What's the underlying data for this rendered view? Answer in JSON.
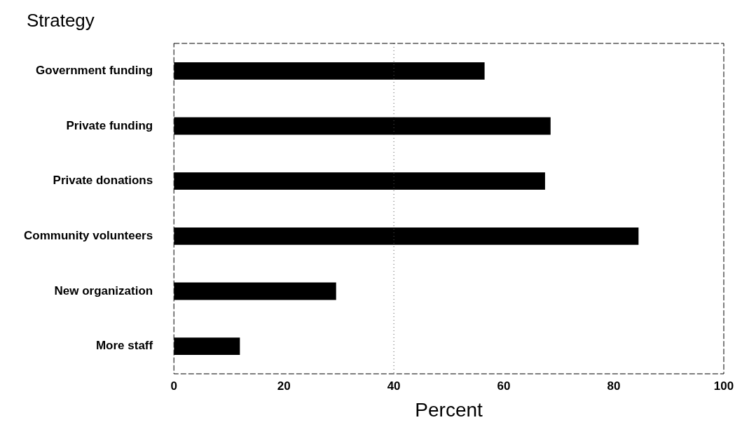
{
  "chart_data": {
    "type": "bar",
    "orientation": "horizontal",
    "title": "Strategy",
    "xlabel": "Percent",
    "categories": [
      "Government funding",
      "Private funding",
      "Private donations",
      "Community volunteers",
      "New organization",
      "More staff"
    ],
    "values": [
      56.5,
      68.5,
      67.5,
      84.5,
      29.5,
      12
    ],
    "color": "#000000",
    "xlim": [
      0,
      100
    ],
    "xticks": [
      0,
      20,
      40,
      60,
      80,
      100
    ],
    "grid": false,
    "legend": false,
    "ref_lines": [
      {
        "axis": "x",
        "value": 40,
        "line_style": "dotted",
        "color": "#555555"
      }
    ]
  }
}
